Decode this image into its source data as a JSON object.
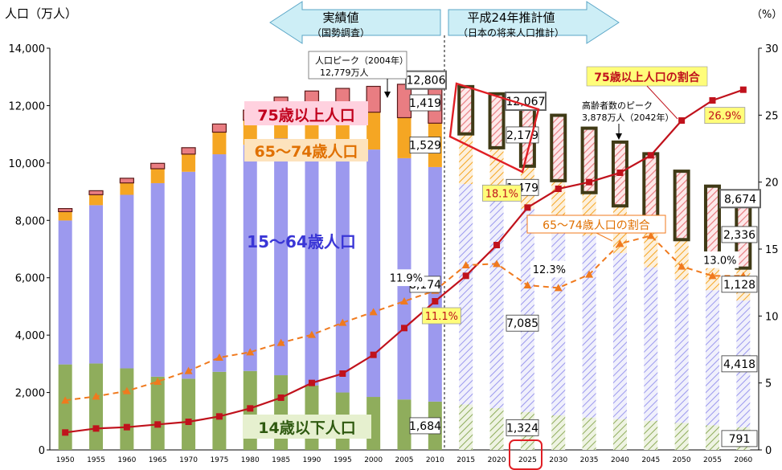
{
  "chart_data": {
    "type": "bar",
    "left_axis_label": "人口（万人）",
    "right_axis_label": "（%）",
    "ylim_left": [
      0,
      14000
    ],
    "ylim_right": [
      0,
      30
    ],
    "left_ticks": [
      "0",
      "2,000",
      "4,000",
      "6,000",
      "8,000",
      "10,000",
      "12,000",
      "14,000"
    ],
    "right_ticks": [
      "0",
      "5",
      "10",
      "15",
      "20",
      "25",
      "30"
    ],
    "categories": [
      "1950",
      "1955",
      "1960",
      "1965",
      "1970",
      "1975",
      "1980",
      "1985",
      "1990",
      "1995",
      "2000",
      "2005",
      "2010",
      "2015",
      "2020",
      "2025",
      "2030",
      "2035",
      "2040",
      "2045",
      "2050",
      "2055",
      "2060"
    ],
    "projection_start_index": 13,
    "series": [
      {
        "name": "14歳以下人口",
        "color": "#8fad5c",
        "values": [
          2979,
          3012,
          2843,
          2553,
          2482,
          2722,
          2751,
          2603,
          2249,
          2001,
          1847,
          1758,
          1684,
          1583,
          1457,
          1324,
          1204,
          1129,
          1073,
          1012,
          944,
          861,
          791
        ]
      },
      {
        "name": "15〜64歳人口",
        "color": "#9c99ee",
        "values": [
          5017,
          5517,
          6047,
          6744,
          7212,
          7581,
          7883,
          8251,
          8590,
          8716,
          8622,
          8409,
          8174,
          7682,
          7341,
          7085,
          6773,
          6343,
          5787,
          5353,
          5001,
          4706,
          4418
        ]
      },
      {
        "name": "65〜74歳人口",
        "color": "#f5a623",
        "values": [
          309,
          365,
          415,
          502,
          615,
          771,
          857,
          970,
          1057,
          1165,
          1301,
          1412,
          1529,
          1749,
          1733,
          1479,
          1407,
          1495,
          1645,
          1699,
          1383,
          1224,
          1128
        ]
      },
      {
        "name": "75歳以上人口",
        "color": "#e97d82",
        "values": [
          106,
          139,
          163,
          189,
          224,
          284,
          350,
          471,
          612,
          717,
          900,
          1164,
          1419,
          1646,
          1879,
          2179,
          2278,
          2245,
          2223,
          2257,
          2385,
          2401,
          2336
        ]
      }
    ],
    "totals_shown": {
      "2010": "12,806",
      "2025": "12,067",
      "2060": "8,674"
    },
    "ratio_series": [
      {
        "name": "75歳以上人口の割合",
        "color": "#c0121c",
        "values": [
          1.3,
          1.6,
          1.7,
          1.9,
          2.1,
          2.5,
          3.1,
          3.9,
          5.0,
          5.7,
          7.1,
          9.1,
          11.1,
          13.0,
          15.3,
          18.1,
          19.5,
          20.0,
          20.7,
          22.0,
          24.6,
          26.1,
          26.9
        ]
      },
      {
        "name": "65〜74歳人口の割合",
        "color": "#f07a1e",
        "values": [
          3.7,
          4.0,
          4.4,
          5.1,
          5.9,
          6.9,
          7.3,
          8.0,
          8.6,
          9.5,
          10.3,
          11.1,
          11.9,
          13.8,
          13.9,
          12.3,
          12.1,
          13.1,
          15.4,
          16.0,
          13.7,
          13.0,
          13.0
        ]
      }
    ],
    "value_labels": {
      "l_2010_75": "1,419",
      "l_2010_65": "1,529",
      "l_2010_15": "8,174",
      "l_2010_14": "1,684",
      "l_2025_75": "2,179",
      "l_2025_65": "1,479",
      "l_2025_15": "7,085",
      "l_2025_14": "1,324",
      "l_2060_75": "2,336",
      "l_2060_65": "1,128",
      "l_2060_15": "4,418",
      "l_2060_14": "791",
      "pct_65_2010": "11.9%",
      "pct_75_2010": "11.1%",
      "pct_75_2025": "18.1%",
      "pct_65_2025": "12.3%",
      "pct_65_2060": "13.0%",
      "pct_75_2060": "26.9%"
    },
    "legend_labels": {
      "age75": "75歳以上人口",
      "age65": "65〜74歳人口",
      "age15": "15〜64歳人口",
      "age14": "14歳以下人口"
    },
    "period_labels": {
      "actual_title": "実績値",
      "actual_sub": "（国勢調査）",
      "proj_title": "平成24年推計値",
      "proj_sub": "（日本の将来人口推計）"
    },
    "annotations": {
      "peak_population_line1": "人口ピーク（2004年）",
      "peak_population_line2": "12,779万人",
      "peak_elderly_line1": "高齢者数のピーク",
      "peak_elderly_line2": "3,878万人（2042年）",
      "ratio75_label": "75歳以上人口の割合",
      "ratio65_label": "65〜74歳人口の割合"
    }
  }
}
